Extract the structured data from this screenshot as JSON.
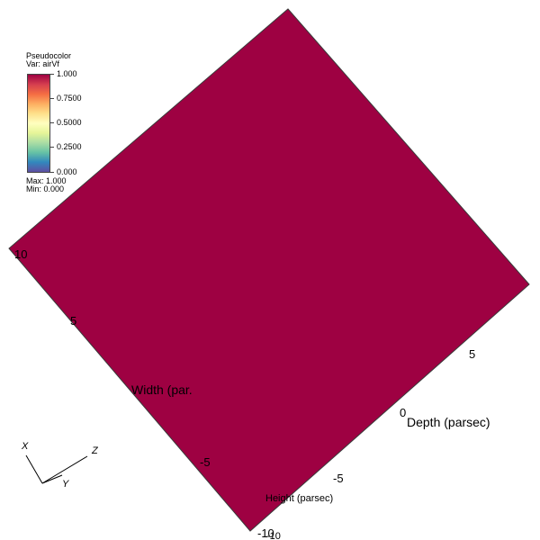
{
  "legend": {
    "title": "Pseudocolor",
    "var": "Var: airVf",
    "ticks": [
      "1.000",
      "0.7500",
      "0.5000",
      "0.2500",
      "0.000"
    ],
    "max": "Max:  1.000",
    "min": "Min:  0.000"
  },
  "plot": {
    "fill_color": "#9e0142",
    "edge_color": "#3a3a3a",
    "colormap": [
      "#9e0142",
      "#d53e4f",
      "#f46d43",
      "#fdae61",
      "#fee08b",
      "#ffffbf",
      "#e6f598",
      "#abdda4",
      "#66c2a5",
      "#3288bd",
      "#5e4fa2"
    ]
  },
  "axes": {
    "width_label": "Width (par.",
    "depth_label": "Depth (parsec)",
    "height_label": "Height (parsec)",
    "width_ticks": [
      "10",
      "5",
      "-5",
      "-10"
    ],
    "depth_ticks": [
      "5",
      "0"
    ],
    "height_ticks": [
      "-5",
      "-10"
    ]
  },
  "triad": {
    "x": "X",
    "y": "Y",
    "z": "Z"
  }
}
